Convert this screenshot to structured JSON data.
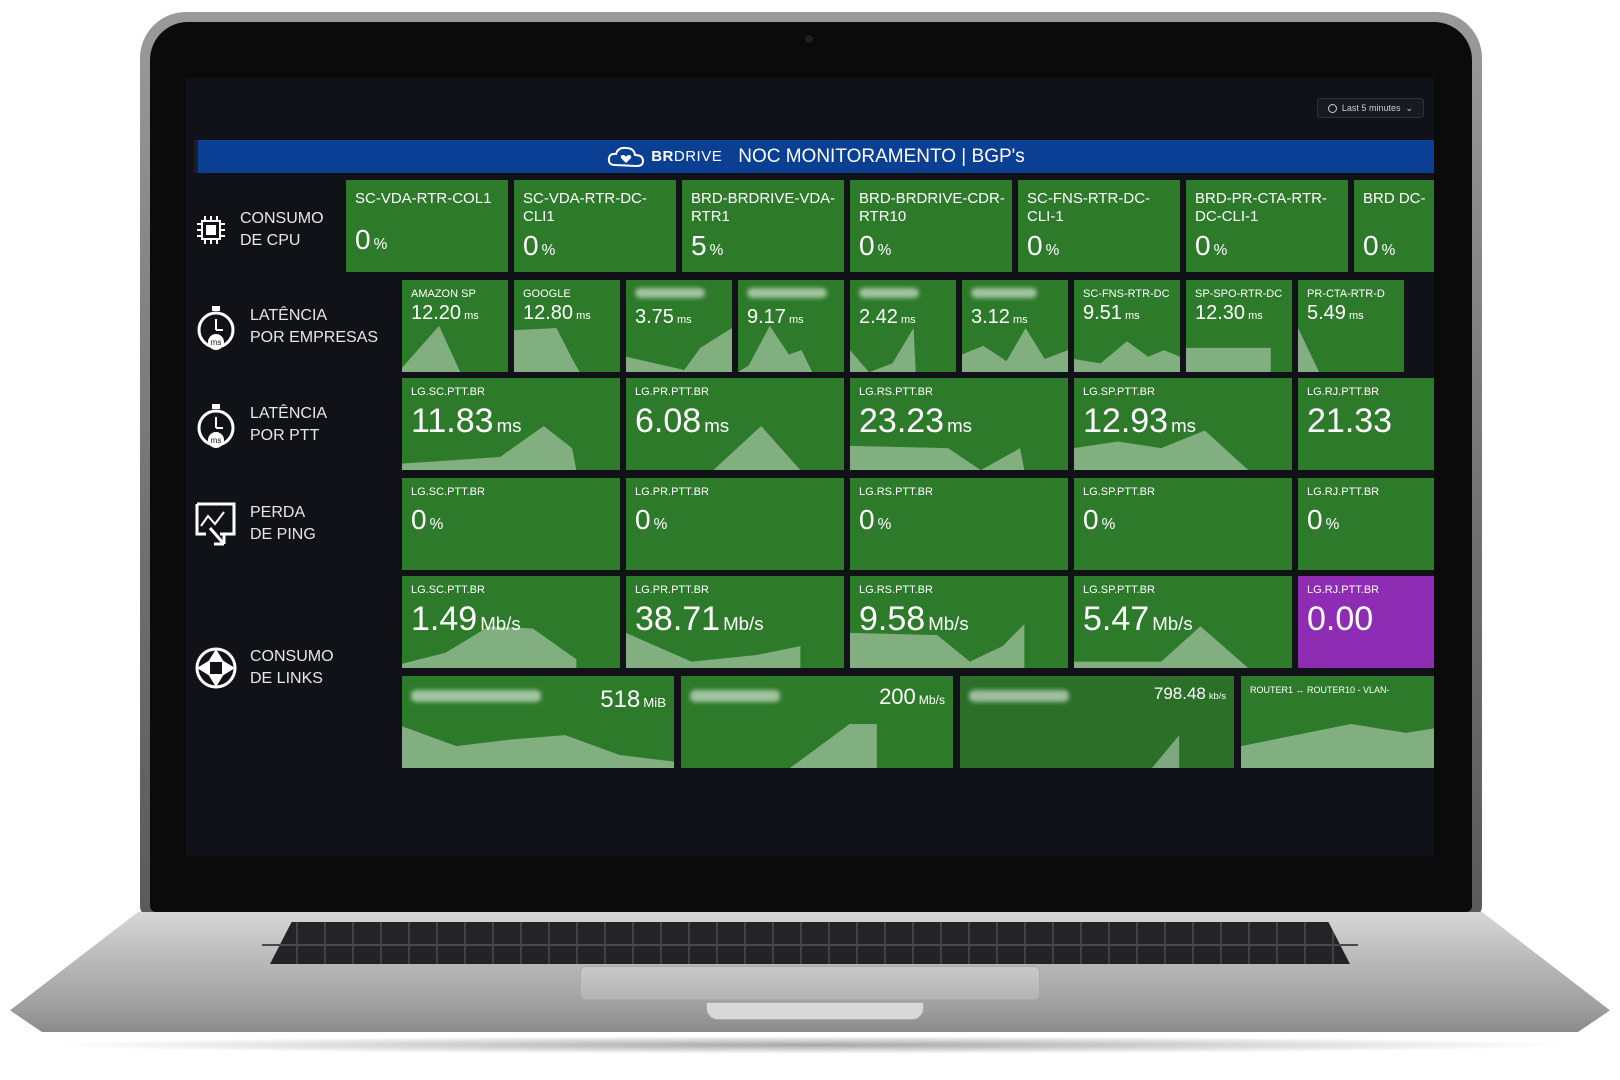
{
  "timepicker": {
    "label": "Last 5 minutes"
  },
  "header": {
    "brand_bold": "BR",
    "brand_thin": "DRIVE",
    "title": "NOC MONITORAMENTO | BGP's"
  },
  "rows": {
    "cpu": {
      "line1": "CONSUMO",
      "line2": "DE CPU"
    },
    "lat_emp": {
      "line1": "LATÊNCIA",
      "line2": "POR EMPRESAS"
    },
    "lat_ptt": {
      "line1": "LATÊNCIA",
      "line2": "POR PTT"
    },
    "perda": {
      "line1": "PERDA",
      "line2": "DE PING"
    },
    "links": {
      "line1": "CONSUMO",
      "line2": "DE LINKS"
    }
  },
  "cpu": [
    {
      "name": "SC-VDA-RTR-COL1",
      "value": "0",
      "unit": "%"
    },
    {
      "name": "SC-VDA-RTR-DC-CLI1",
      "value": "0",
      "unit": "%"
    },
    {
      "name": "BRD-BRDRIVE-VDA-RTR1",
      "value": "5",
      "unit": "%"
    },
    {
      "name": "BRD-BRDRIVE-CDR-RTR10",
      "value": "0",
      "unit": "%"
    },
    {
      "name": "SC-FNS-RTR-DC-CLI-1",
      "value": "0",
      "unit": "%"
    },
    {
      "name": "BRD-PR-CTA-RTR-DC-CLI-1",
      "value": "0",
      "unit": "%"
    },
    {
      "name": "BRD DC-",
      "value": "0",
      "unit": "%"
    }
  ],
  "latencia_empresas": [
    {
      "name": "AMAZON SP",
      "value": "12.20",
      "unit": "ms"
    },
    {
      "name": "GOOGLE",
      "value": "12.80",
      "unit": "ms"
    },
    {
      "name": "",
      "value": "3.75",
      "unit": "ms"
    },
    {
      "name": "",
      "value": "9.17",
      "unit": "ms"
    },
    {
      "name": "",
      "value": "2.42",
      "unit": "ms"
    },
    {
      "name": "",
      "value": "3.12",
      "unit": "ms"
    },
    {
      "name": "SC-FNS-RTR-DC",
      "value": "9.51",
      "unit": "ms"
    },
    {
      "name": "SP-SPO-RTR-DC",
      "value": "12.30",
      "unit": "ms"
    },
    {
      "name": "PR-CTA-RTR-D",
      "value": "5.49",
      "unit": "ms"
    }
  ],
  "latencia_ptt": [
    {
      "name": "LG.SC.PTT.BR",
      "value": "11.83",
      "unit": "ms"
    },
    {
      "name": "LG.PR.PTT.BR",
      "value": "6.08",
      "unit": "ms"
    },
    {
      "name": "LG.RS.PTT.BR",
      "value": "23.23",
      "unit": "ms"
    },
    {
      "name": "LG.SP.PTT.BR",
      "value": "12.93",
      "unit": "ms"
    },
    {
      "name": "LG.RJ.PTT.BR",
      "value": "21.33",
      "unit": ""
    }
  ],
  "perda_ping": [
    {
      "name": "LG.SC.PTT.BR",
      "value": "0",
      "unit": "%"
    },
    {
      "name": "LG.PR.PTT.BR",
      "value": "0",
      "unit": "%"
    },
    {
      "name": "LG.RS.PTT.BR",
      "value": "0",
      "unit": "%"
    },
    {
      "name": "LG.SP.PTT.BR",
      "value": "0",
      "unit": "%"
    },
    {
      "name": "LG.RJ.PTT.BR",
      "value": "0",
      "unit": "%"
    }
  ],
  "consumo_links": [
    {
      "name": "LG.SC.PTT.BR",
      "value": "1.49",
      "unit": "Mb/s"
    },
    {
      "name": "LG.PR.PTT.BR",
      "value": "38.71",
      "unit": "Mb/s"
    },
    {
      "name": "LG.RS.PTT.BR",
      "value": "9.58",
      "unit": "Mb/s"
    },
    {
      "name": "LG.SP.PTT.BR",
      "value": "5.47",
      "unit": "Mb/s"
    },
    {
      "name": "LG.RJ.PTT.BR",
      "value": "0.00",
      "unit": ""
    }
  ],
  "links_bottom": [
    {
      "name": "",
      "value": "518",
      "unit": "MiB"
    },
    {
      "name": "",
      "value": "200",
      "unit": "Mb/s"
    },
    {
      "name": "",
      "value": "798.48",
      "unit": "kb/s"
    },
    {
      "name": "ROUTER1 ↔ ROUTER10 - VLAN-",
      "value": "",
      "unit": ""
    }
  ],
  "colors": {
    "panel_green": "#2e7a2b",
    "panel_purple": "#8f2cb4",
    "header_blue": "#0a3f93",
    "screen_bg": "#111217"
  }
}
